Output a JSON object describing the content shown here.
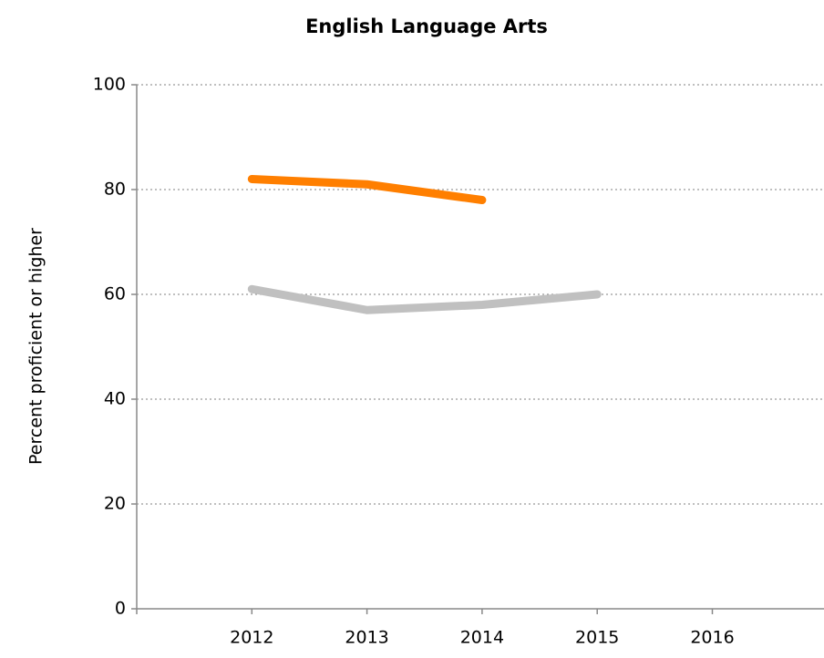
{
  "chart_data": {
    "type": "line",
    "title": "English Language Arts",
    "y_label": "Percent proficient or higher",
    "categories": [
      "2012",
      "2013",
      "2014",
      "2015",
      "2016"
    ],
    "series": [
      {
        "color": "#ff7f00",
        "values": [
          82,
          81,
          78,
          null,
          null
        ]
      },
      {
        "color": "#c0c0c0",
        "values": [
          61,
          57,
          58,
          60,
          null
        ]
      }
    ],
    "ylim": [
      0,
      100
    ],
    "yticks": [
      0,
      20,
      40,
      60,
      80,
      100
    ],
    "grid": true
  }
}
